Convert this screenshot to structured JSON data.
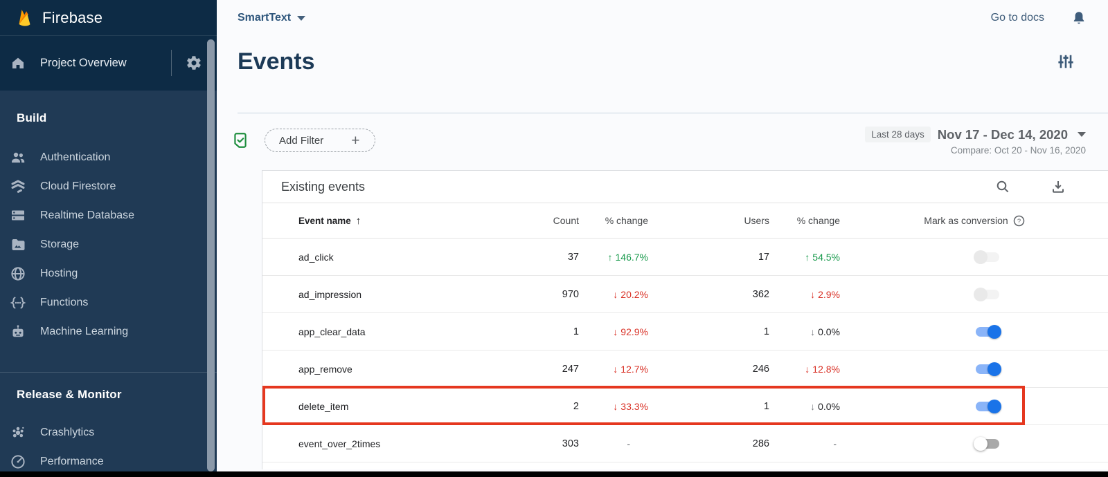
{
  "colors": {
    "sidebar-top": "#0d2b45",
    "sidebar-body": "#203a55",
    "accent-blue": "#1a73e8",
    "toggle-track": "#8ab4f8",
    "green": "#17994b",
    "red": "#d93025",
    "highlight": "#e5371f",
    "brand-flame": "#ffca28"
  },
  "sidebar": {
    "brand": "Firebase",
    "project_overview": {
      "label": "Project Overview"
    },
    "sections": [
      {
        "label": "Build",
        "items": [
          {
            "label": "Authentication",
            "icon": "people-icon"
          },
          {
            "label": "Cloud Firestore",
            "icon": "firestore-icon"
          },
          {
            "label": "Realtime Database",
            "icon": "database-icon"
          },
          {
            "label": "Storage",
            "icon": "folder-image-icon"
          },
          {
            "label": "Hosting",
            "icon": "globe-icon"
          },
          {
            "label": "Functions",
            "icon": "functions-icon"
          },
          {
            "label": "Machine Learning",
            "icon": "robot-icon"
          }
        ]
      },
      {
        "label": "Release & Monitor",
        "items": [
          {
            "label": "Crashlytics",
            "icon": "crash-icon"
          },
          {
            "label": "Performance",
            "icon": "speedometer-icon"
          }
        ]
      }
    ]
  },
  "topbar": {
    "project_selector": "SmartText",
    "go_to_docs": "Go to docs"
  },
  "page": {
    "title": "Events"
  },
  "filters": {
    "add_filter_label": "Add Filter",
    "range_badge": "Last 28 days",
    "date_range": "Nov 17 - Dec 14, 2020",
    "compare_label": "Compare: Oct 20 - Nov 16, 2020"
  },
  "table": {
    "title": "Existing events",
    "columns": [
      "Event name",
      "Count",
      "% change",
      "Users",
      "% change",
      "Mark as conversion"
    ],
    "rows": [
      {
        "name": "ad_click",
        "count": "37",
        "count_change": {
          "dir": "up",
          "value": "146.7%"
        },
        "users": "17",
        "users_change": {
          "dir": "up",
          "value": "54.5%"
        },
        "toggle": "faded",
        "highlight": false
      },
      {
        "name": "ad_impression",
        "count": "970",
        "count_change": {
          "dir": "down",
          "value": "20.2%"
        },
        "users": "362",
        "users_change": {
          "dir": "down",
          "value": "2.9%"
        },
        "toggle": "faded",
        "highlight": false
      },
      {
        "name": "app_clear_data",
        "count": "1",
        "count_change": {
          "dir": "down",
          "value": "92.9%"
        },
        "users": "1",
        "users_change": {
          "dir": "down-gray",
          "value": "0.0%"
        },
        "toggle": "on",
        "highlight": false
      },
      {
        "name": "app_remove",
        "count": "247",
        "count_change": {
          "dir": "down",
          "value": "12.7%"
        },
        "users": "246",
        "users_change": {
          "dir": "down",
          "value": "12.8%"
        },
        "toggle": "on",
        "highlight": false
      },
      {
        "name": "delete_item",
        "count": "2",
        "count_change": {
          "dir": "down",
          "value": "33.3%"
        },
        "users": "1",
        "users_change": {
          "dir": "down-gray",
          "value": "0.0%"
        },
        "toggle": "on",
        "highlight": true
      },
      {
        "name": "event_over_2times",
        "count": "303",
        "count_change": {
          "dir": "none",
          "value": "-"
        },
        "users": "286",
        "users_change": {
          "dir": "none",
          "value": "-"
        },
        "toggle": "off",
        "highlight": false
      }
    ]
  }
}
